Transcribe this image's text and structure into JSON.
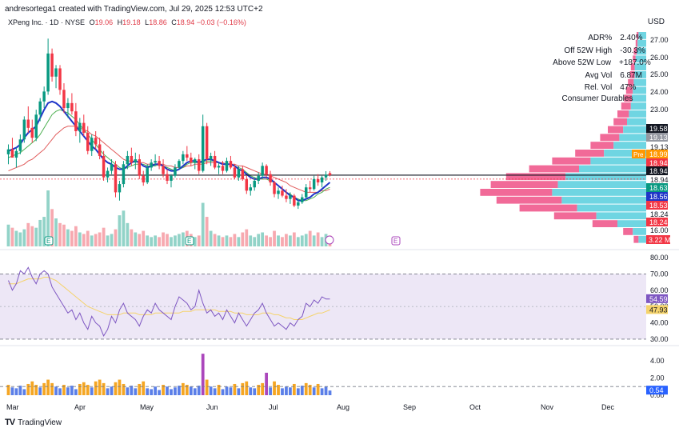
{
  "header": {
    "created_by": "andresortega1 created with TradingView.com, Jul 29, 2025 12:53 UTC+2",
    "currency": "USD",
    "symbol": "XPeng Inc. · 1D · NYSE",
    "o_label": "O",
    "o_value": "19.06",
    "h_label": "H",
    "h_value": "19.18",
    "l_label": "L",
    "l_value": "18.86",
    "c_label": "C",
    "c_value": "18.94",
    "change": "−0.03 (−0.16%)"
  },
  "stats": [
    {
      "key": "ADR%",
      "value": "2.40%"
    },
    {
      "key": "Off 52W High",
      "value": "-30.3%"
    },
    {
      "key": "Above 52W Low",
      "value": "+187.0%"
    },
    {
      "key": "Avg Vol",
      "value": "6.87M"
    },
    {
      "key": "Rel. Vol",
      "value": "47%"
    }
  ],
  "sector": "Consumer Durables",
  "brand": "TradingView",
  "colors": {
    "up": "#089981",
    "down": "#f23645",
    "ma_blue": "#1e35c8",
    "ma_green": "#4caf50",
    "ma_red": "#e05a5a",
    "vp_pink": "#f06292",
    "vp_cyan": "#67d3e0",
    "rsi_line": "#7e57c2",
    "rsi_ma": "#f5d36b",
    "rsi_bg": "#ede7f6"
  },
  "chart_data": [
    {
      "type": "candlestick",
      "name": "XPEV 1D",
      "x_labels": [
        "Mar",
        "Apr",
        "May",
        "Jun",
        "Jul",
        "Aug",
        "Sep",
        "Oct",
        "Nov",
        "Dec"
      ],
      "price_ticks": [
        "27.00",
        "26.00",
        "25.00",
        "24.00",
        "23.00",
        "19.13",
        "18.94",
        "18.24",
        "16.00"
      ],
      "price_range": [
        15.5,
        27.6
      ],
      "candles": [
        [
          20.2,
          20.8,
          19.6,
          20.5
        ],
        [
          20.5,
          21.2,
          20.1,
          20.0
        ],
        [
          20.0,
          20.6,
          19.4,
          20.4
        ],
        [
          20.4,
          21.4,
          20.2,
          21.1
        ],
        [
          21.1,
          22.5,
          20.9,
          22.3
        ],
        [
          22.3,
          23.1,
          21.5,
          21.8
        ],
        [
          21.8,
          22.3,
          20.9,
          21.2
        ],
        [
          21.2,
          22.9,
          21.0,
          22.6
        ],
        [
          22.6,
          23.6,
          22.2,
          23.4
        ],
        [
          23.4,
          24.3,
          23.0,
          24.0
        ],
        [
          24.0,
          27.2,
          23.8,
          26.3
        ],
        [
          26.3,
          26.6,
          24.6,
          24.9
        ],
        [
          24.9,
          25.6,
          24.2,
          25.4
        ],
        [
          25.4,
          25.6,
          23.8,
          24.1
        ],
        [
          24.1,
          24.5,
          22.7,
          23.0
        ],
        [
          23.0,
          23.6,
          22.4,
          23.3
        ],
        [
          23.3,
          23.9,
          22.6,
          22.8
        ],
        [
          22.8,
          23.3,
          21.3,
          21.6
        ],
        [
          21.6,
          22.4,
          20.9,
          22.1
        ],
        [
          22.1,
          22.6,
          21.3,
          21.5
        ],
        [
          21.5,
          21.9,
          20.2,
          20.4
        ],
        [
          20.4,
          21.4,
          20.1,
          21.2
        ],
        [
          21.2,
          21.6,
          20.5,
          20.8
        ],
        [
          20.8,
          21.2,
          19.9,
          20.1
        ],
        [
          20.1,
          20.4,
          18.6,
          18.8
        ],
        [
          18.8,
          19.4,
          18.5,
          19.2
        ],
        [
          19.2,
          19.9,
          19.0,
          19.6
        ],
        [
          19.6,
          19.8,
          17.6,
          17.9
        ],
        [
          17.9,
          18.6,
          17.4,
          18.4
        ],
        [
          18.4,
          19.8,
          18.2,
          19.6
        ],
        [
          19.6,
          20.4,
          19.3,
          20.1
        ],
        [
          20.1,
          20.6,
          19.5,
          19.7
        ],
        [
          19.7,
          20.3,
          19.3,
          19.9
        ],
        [
          19.9,
          20.2,
          18.7,
          18.9
        ],
        [
          18.9,
          19.2,
          18.3,
          18.5
        ],
        [
          18.5,
          19.6,
          18.4,
          19.4
        ],
        [
          19.4,
          19.9,
          19.2,
          19.7
        ],
        [
          19.7,
          20.2,
          19.5,
          19.8
        ],
        [
          19.8,
          20.1,
          19.3,
          19.5
        ],
        [
          19.5,
          19.9,
          18.8,
          19.0
        ],
        [
          19.0,
          19.3,
          18.4,
          18.6
        ],
        [
          18.6,
          19.0,
          18.2,
          18.9
        ],
        [
          18.9,
          19.6,
          18.8,
          19.4
        ],
        [
          19.4,
          19.9,
          19.3,
          19.8
        ],
        [
          19.8,
          20.4,
          19.6,
          20.2
        ],
        [
          20.2,
          20.7,
          19.8,
          20.0
        ],
        [
          20.0,
          20.3,
          19.5,
          19.7
        ],
        [
          19.7,
          20.0,
          19.3,
          19.9
        ],
        [
          19.9,
          20.2,
          19.0,
          19.2
        ],
        [
          19.2,
          22.6,
          19.1,
          21.9
        ],
        [
          21.9,
          22.1,
          19.6,
          19.9
        ],
        [
          19.9,
          20.3,
          19.5,
          20.1
        ],
        [
          20.1,
          20.4,
          19.3,
          19.4
        ],
        [
          19.4,
          19.7,
          19.0,
          19.5
        ],
        [
          19.5,
          19.8,
          19.0,
          19.2
        ],
        [
          19.2,
          20.0,
          19.1,
          19.8
        ],
        [
          19.8,
          20.1,
          19.3,
          19.4
        ],
        [
          19.4,
          19.6,
          18.7,
          18.8
        ],
        [
          18.8,
          19.5,
          18.6,
          19.3
        ],
        [
          19.3,
          19.5,
          18.6,
          18.7
        ],
        [
          18.7,
          18.9,
          17.8,
          18.0
        ],
        [
          18.0,
          18.4,
          17.7,
          18.2
        ],
        [
          18.2,
          18.8,
          18.0,
          18.6
        ],
        [
          18.6,
          19.1,
          18.4,
          18.9
        ],
        [
          18.9,
          19.7,
          18.7,
          19.5
        ],
        [
          19.5,
          19.6,
          18.8,
          19.0
        ],
        [
          19.0,
          19.2,
          18.3,
          18.5
        ],
        [
          18.5,
          18.6,
          17.6,
          17.8
        ],
        [
          17.8,
          18.2,
          17.5,
          18.0
        ],
        [
          18.0,
          18.3,
          17.6,
          17.7
        ],
        [
          17.7,
          18.1,
          17.3,
          17.5
        ],
        [
          17.5,
          17.9,
          17.2,
          17.7
        ],
        [
          17.7,
          17.8,
          17.0,
          17.1
        ],
        [
          17.1,
          17.5,
          16.9,
          17.3
        ],
        [
          17.3,
          17.8,
          17.2,
          17.6
        ],
        [
          17.6,
          18.4,
          17.5,
          18.2
        ],
        [
          18.2,
          18.6,
          17.9,
          18.1
        ],
        [
          18.1,
          18.9,
          18.0,
          18.7
        ],
        [
          18.7,
          19.0,
          18.3,
          18.5
        ],
        [
          18.5,
          18.9,
          18.2,
          18.8
        ],
        [
          18.8,
          19.18,
          18.6,
          18.97
        ],
        [
          19.06,
          19.18,
          18.86,
          18.94
        ]
      ],
      "ma_blue": [
        20.4,
        20.5,
        20.6,
        20.8,
        21.2,
        21.5,
        21.7,
        21.9,
        22.4,
        22.9,
        23.3,
        23.4,
        23.3,
        23.1,
        22.8,
        22.5,
        22.2,
        21.9,
        21.6,
        21.3,
        21.0,
        20.7,
        20.5,
        20.2,
        19.9,
        19.7,
        19.6,
        19.4,
        19.3,
        19.3,
        19.5,
        19.7,
        19.8,
        19.7,
        19.5,
        19.4,
        19.5,
        19.6,
        19.6,
        19.5,
        19.3,
        19.2,
        19.2,
        19.3,
        19.5,
        19.7,
        19.8,
        19.8,
        19.7,
        19.8,
        19.9,
        19.9,
        19.8,
        19.7,
        19.6,
        19.6,
        19.6,
        19.5,
        19.3,
        19.2,
        19.0,
        18.8,
        18.7,
        18.7,
        18.8,
        18.8,
        18.7,
        18.5,
        18.3,
        18.1,
        17.9,
        17.7,
        17.6,
        17.4,
        17.4,
        17.5,
        17.6,
        17.8,
        17.9,
        18.1,
        18.3,
        18.5
      ],
      "ma_green": [
        20.0,
        20.1,
        20.2,
        20.3,
        20.5,
        20.7,
        20.9,
        21.1,
        21.4,
        21.8,
        22.2,
        22.6,
        22.8,
        22.9,
        22.8,
        22.7,
        22.5,
        22.3,
        22.0,
        21.7,
        21.4,
        21.1,
        20.8,
        20.5,
        20.2,
        20.0,
        19.8,
        19.6,
        19.4,
        19.3,
        19.4,
        19.5,
        19.6,
        19.6,
        19.6,
        19.5,
        19.5,
        19.5,
        19.6,
        19.5,
        19.4,
        19.3,
        19.2,
        19.3,
        19.4,
        19.6,
        19.7,
        19.7,
        19.7,
        19.7,
        19.8,
        19.8,
        19.8,
        19.7,
        19.6,
        19.6,
        19.6,
        19.5,
        19.4,
        19.3,
        19.1,
        18.9,
        18.8,
        18.7,
        18.7,
        18.7,
        18.6,
        18.5,
        18.3,
        18.1,
        17.9,
        17.8,
        17.6,
        17.5,
        17.4,
        17.4,
        17.5,
        17.6,
        17.8,
        17.9,
        18.1,
        18.2
      ],
      "ma_red": [
        19.2,
        19.3,
        19.4,
        19.5,
        19.6,
        19.8,
        19.9,
        20.1,
        20.3,
        20.5,
        20.8,
        21.1,
        21.4,
        21.6,
        21.8,
        21.9,
        21.9,
        21.9,
        21.8,
        21.7,
        21.6,
        21.4,
        21.3,
        21.1,
        20.9,
        20.7,
        20.5,
        20.3,
        20.1,
        19.9,
        19.8,
        19.8,
        19.8,
        19.7,
        19.7,
        19.6,
        19.6,
        19.6,
        19.6,
        19.6,
        19.5,
        19.5,
        19.4,
        19.4,
        19.4,
        19.5,
        19.5,
        19.6,
        19.6,
        19.6,
        19.7,
        19.7,
        19.7,
        19.7,
        19.7,
        19.6,
        19.6,
        19.6,
        19.5,
        19.5,
        19.4,
        19.3,
        19.2,
        19.1,
        19.0,
        19.0,
        18.9,
        18.8,
        18.7,
        18.6,
        18.5,
        18.3,
        18.2,
        18.1,
        18.0,
        17.9,
        17.9,
        17.9,
        17.9,
        18.0,
        18.0,
        18.1
      ],
      "volume": [
        28,
        24,
        20,
        18,
        22,
        30,
        26,
        24,
        34,
        38,
        72,
        48,
        36,
        30,
        28,
        22,
        20,
        26,
        18,
        16,
        20,
        14,
        16,
        18,
        24,
        14,
        16,
        22,
        40,
        46,
        30,
        22,
        18,
        16,
        20,
        14,
        12,
        14,
        12,
        18,
        16,
        12,
        14,
        16,
        18,
        20,
        16,
        12,
        14,
        56,
        38,
        20,
        16,
        14,
        12,
        14,
        12,
        16,
        12,
        18,
        22,
        14,
        12,
        16,
        18,
        14,
        12,
        20,
        14,
        12,
        16,
        14,
        18,
        12,
        14,
        16,
        20,
        14,
        18,
        12,
        16,
        14
      ],
      "volume_ticks": [
        "3.22 M"
      ],
      "horizontal_line": 18.94,
      "dotted_line": 18.7,
      "axis_labels": [
        {
          "text": "19.58",
          "bg": "#131722",
          "y": 19.58
        },
        {
          "text": "19.13",
          "bg": "#9598a1",
          "y": 19.13
        },
        {
          "text": "18.99",
          "bg": "#ff9800",
          "y": 18.99,
          "tag": "Pre"
        },
        {
          "text": "18.94",
          "bg": "#f23645",
          "y": 18.94
        },
        {
          "text": "18.94",
          "bg": "#131722",
          "y": 18.94
        },
        {
          "text": "18.63",
          "bg": "#089981",
          "y": 18.63
        },
        {
          "text": "18.56",
          "bg": "#1e35c8",
          "y": 18.56
        },
        {
          "text": "18.53",
          "bg": "#f23645",
          "y": 18.53
        },
        {
          "text": "18.24",
          "bg": "#f23645",
          "y": 18.24
        }
      ]
    },
    {
      "type": "bar",
      "name": "Volume Profile",
      "orientation": "horizontal",
      "levels": [
        27.0,
        26.6,
        26.2,
        25.8,
        25.4,
        25.0,
        24.6,
        24.2,
        23.8,
        23.4,
        23.0,
        22.6,
        22.2,
        21.8,
        21.4,
        21.0,
        20.6,
        20.2,
        19.8,
        19.4,
        19.0,
        18.6,
        18.2,
        17.8,
        17.4,
        17.0,
        16.6
      ],
      "buy": [
        8,
        9,
        10,
        11,
        12,
        12,
        13,
        14,
        15,
        16,
        18,
        20,
        24,
        28,
        34,
        44,
        58,
        70,
        84,
        92,
        98,
        88,
        72,
        52,
        30,
        14,
        8
      ],
      "sell": [
        2,
        2,
        3,
        3,
        4,
        5,
        6,
        7,
        8,
        10,
        12,
        14,
        16,
        20,
        24,
        30,
        40,
        52,
        62,
        70,
        75,
        68,
        60,
        44,
        26,
        10,
        5
      ]
    },
    {
      "type": "line",
      "name": "RSI",
      "ylim": [
        28,
        82
      ],
      "ticks": [
        "80.00",
        "70.00",
        "60.00",
        "50.00",
        "40.00",
        "30.00"
      ],
      "upper": 70,
      "lower": 30,
      "mid": 50,
      "rsi": [
        66,
        60,
        64,
        72,
        70,
        74,
        68,
        64,
        70,
        72,
        70,
        62,
        58,
        54,
        50,
        46,
        48,
        42,
        46,
        40,
        36,
        44,
        40,
        38,
        32,
        36,
        44,
        40,
        48,
        52,
        46,
        44,
        42,
        38,
        44,
        48,
        46,
        52,
        48,
        46,
        44,
        42,
        50,
        56,
        54,
        52,
        48,
        50,
        60,
        52,
        46,
        48,
        44,
        46,
        42,
        48,
        44,
        40,
        46,
        42,
        38,
        42,
        46,
        48,
        52,
        46,
        42,
        38,
        40,
        38,
        36,
        40,
        38,
        42,
        44,
        52,
        50,
        54,
        52,
        56,
        54.6,
        54.59
      ],
      "rsi_ma": [
        64,
        64,
        64,
        65,
        66,
        67,
        67,
        67,
        67,
        68,
        68,
        67,
        66,
        64,
        62,
        60,
        58,
        56,
        54,
        52,
        50,
        49,
        48,
        47,
        46,
        45,
        45,
        45,
        45,
        46,
        46,
        46,
        46,
        45,
        45,
        45,
        45,
        46,
        46,
        46,
        46,
        46,
        46,
        46,
        47,
        47,
        47,
        48,
        48,
        48,
        48,
        48,
        48,
        47,
        47,
        47,
        47,
        46,
        46,
        46,
        45,
        45,
        45,
        45,
        46,
        46,
        46,
        45,
        45,
        44,
        43,
        43,
        42,
        42,
        42,
        43,
        44,
        45,
        46,
        46,
        47,
        47.93
      ],
      "labels": [
        {
          "text": "54.59",
          "bg": "#7e57c2"
        },
        {
          "text": "47.93",
          "bg": "#f5d36b"
        }
      ]
    },
    {
      "type": "bar",
      "name": "Relative Volume",
      "ylim": [
        0,
        5
      ],
      "ticks": [
        "4.00",
        "2.00",
        "0.00"
      ],
      "dashed": 1.0,
      "values": [
        1.2,
        0.9,
        0.8,
        1.1,
        0.7,
        1.3,
        1.6,
        1.2,
        0.9,
        1.4,
        1.8,
        1.4,
        1.0,
        0.8,
        1.2,
        0.9,
        1.1,
        0.7,
        1.3,
        1.5,
        1.2,
        0.9,
        1.6,
        1.8,
        1.4,
        0.8,
        1.0,
        1.5,
        1.8,
        1.3,
        0.9,
        1.1,
        0.8,
        1.3,
        1.6,
        0.8,
        0.7,
        1.0,
        0.6,
        1.2,
        1.0,
        0.7,
        0.9,
        1.1,
        1.4,
        1.2,
        1.0,
        0.8,
        1.1,
        4.8,
        1.8,
        1.0,
        0.8,
        1.2,
        0.7,
        1.0,
        0.9,
        1.3,
        0.8,
        1.4,
        1.6,
        0.9,
        0.8,
        1.2,
        1.4,
        2.6,
        0.9,
        1.6,
        1.2,
        0.8,
        1.0,
        0.9,
        1.3,
        0.8,
        1.1,
        1.4,
        1.2,
        0.9,
        1.3,
        0.8,
        1.0,
        0.54
      ],
      "label": {
        "text": "0.54",
        "bg": "#2962ff"
      }
    }
  ]
}
